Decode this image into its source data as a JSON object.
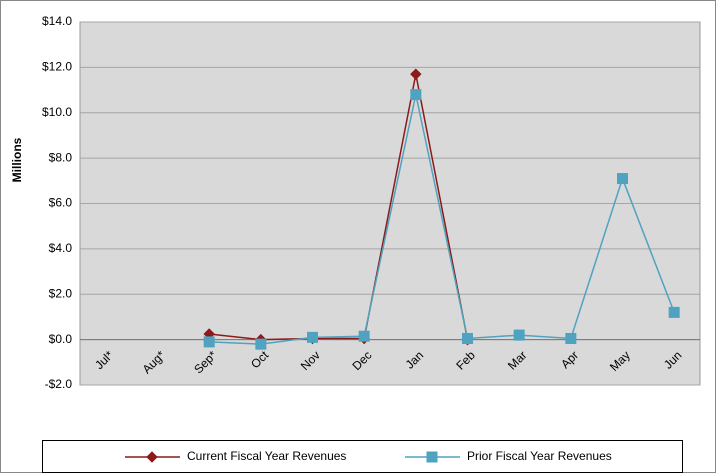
{
  "chart_data": {
    "type": "line",
    "y_label": "Millions",
    "categories": [
      "Jul*",
      "Aug*",
      "Sep*",
      "Oct",
      "Nov",
      "Dec",
      "Jan",
      "Feb",
      "Mar",
      "Apr",
      "May",
      "Jun"
    ],
    "series": [
      {
        "name": "Current Fiscal Year Revenues",
        "color": "#8b1a1a",
        "marker": "diamond",
        "values": [
          null,
          null,
          0.25,
          0.0,
          0.05,
          0.05,
          11.7,
          0.0,
          null,
          null,
          null,
          null
        ]
      },
      {
        "name": "Prior Fiscal Year Revenues",
        "color": "#4fa3c0",
        "marker": "square",
        "values": [
          null,
          null,
          -0.1,
          -0.2,
          0.1,
          0.15,
          10.8,
          0.05,
          0.2,
          0.05,
          7.1,
          1.2
        ]
      }
    ],
    "ylim": [
      -2,
      14
    ],
    "yticks": [
      {
        "value": -2,
        "label": "-$2.0"
      },
      {
        "value": 0,
        "label": "$0.0"
      },
      {
        "value": 2,
        "label": "$2.0"
      },
      {
        "value": 4,
        "label": "$4.0"
      },
      {
        "value": 6,
        "label": "$6.0"
      },
      {
        "value": 8,
        "label": "$8.0"
      },
      {
        "value": 10,
        "label": "$10.0"
      },
      {
        "value": 12,
        "label": "$12.0"
      },
      {
        "value": 14,
        "label": "$14.0"
      }
    ],
    "grid": true,
    "legend": "bottom"
  }
}
